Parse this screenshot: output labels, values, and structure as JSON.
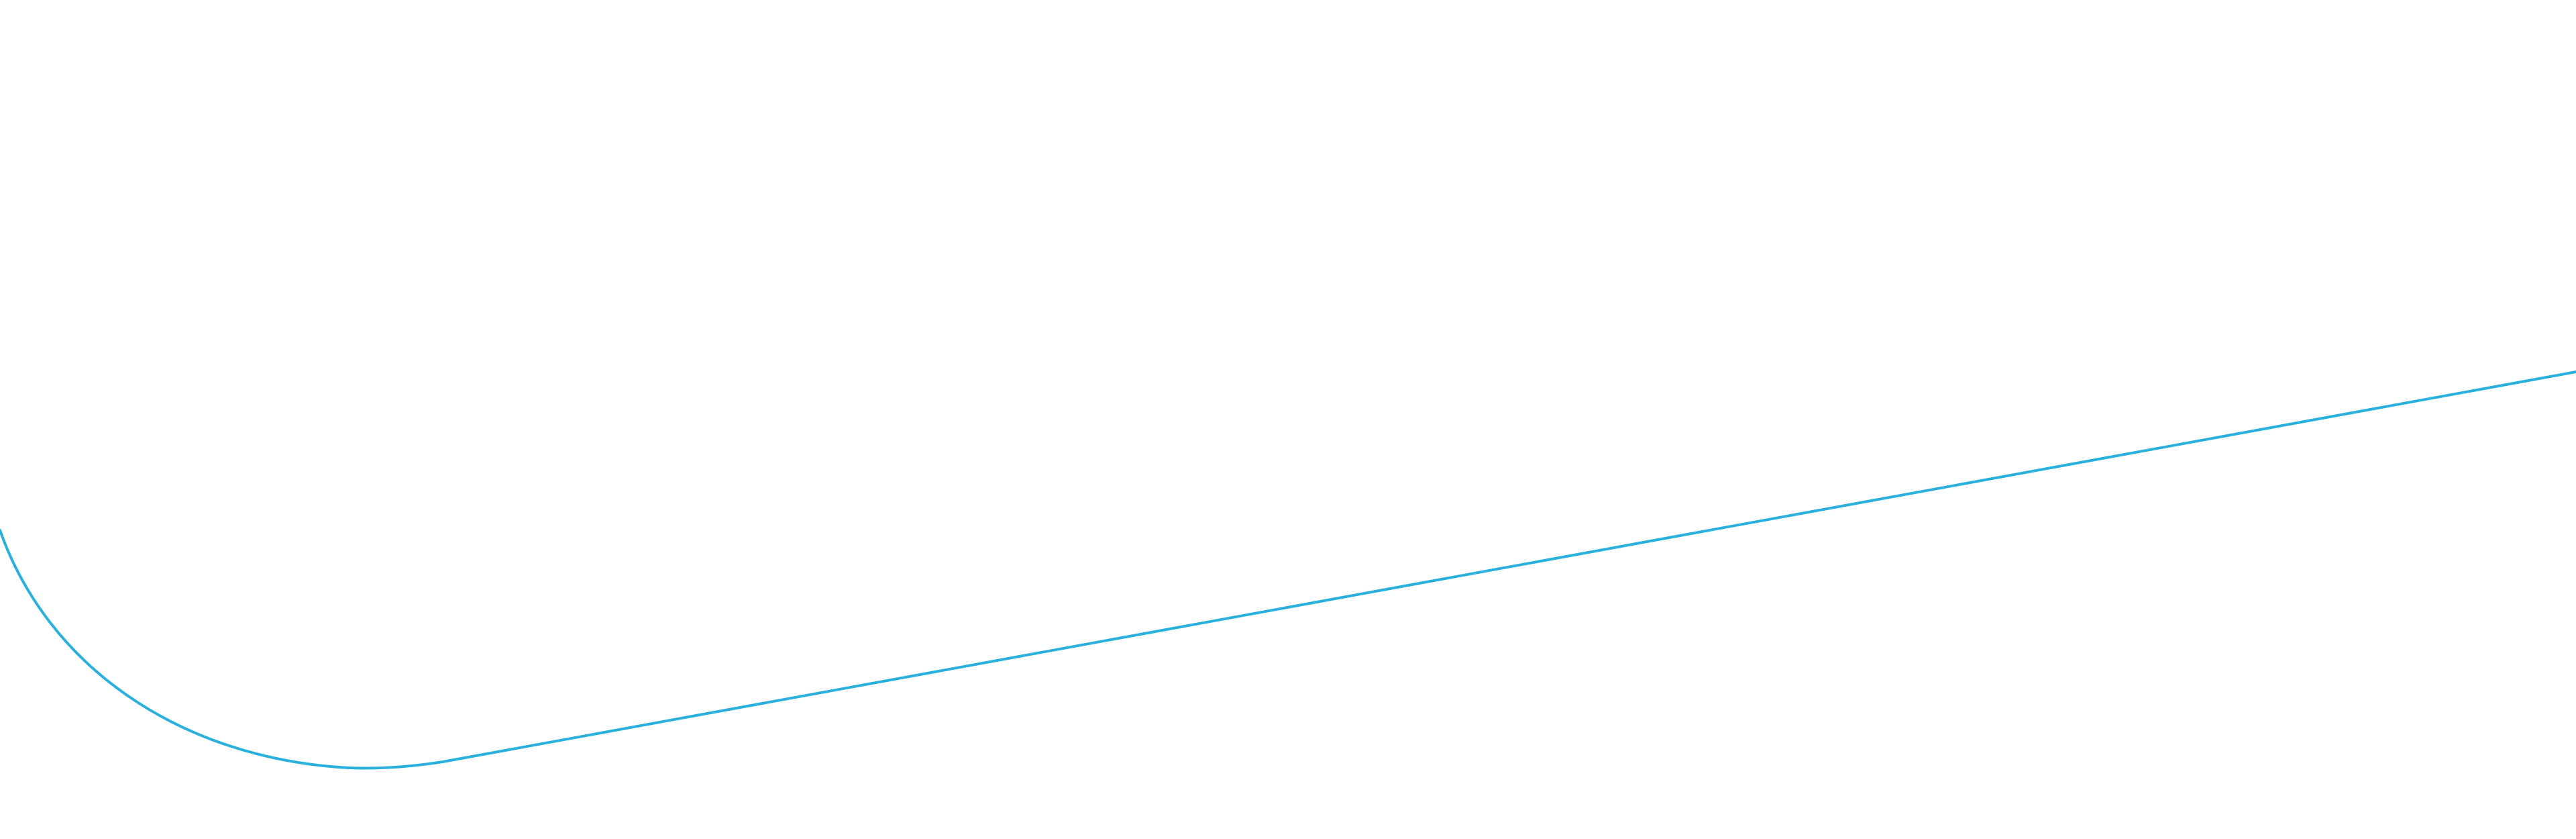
{
  "background": {
    "color": "#ffffff"
  },
  "decoration": {
    "shape": "rounded-slanted-outline",
    "stroke_color": "#2ab0dc"
  }
}
